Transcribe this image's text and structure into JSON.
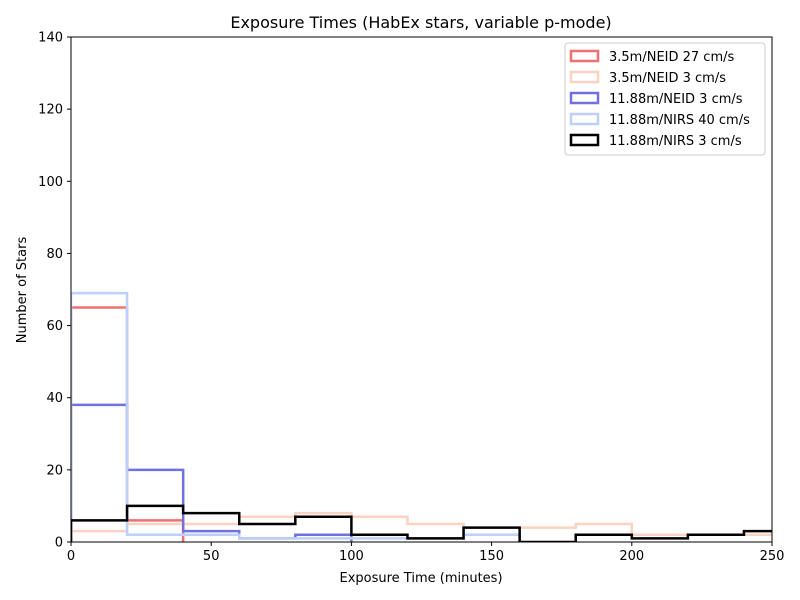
{
  "chart_data": {
    "type": "histogram",
    "title": "Exposure Times (HabEx stars, variable p-mode)",
    "xlabel": "Exposure Time (minutes)",
    "ylabel": "Number of Stars",
    "xlim": [
      0,
      250
    ],
    "ylim": [
      0,
      140
    ],
    "xticks": [
      0,
      50,
      100,
      150,
      200,
      250
    ],
    "yticks": [
      0,
      20,
      40,
      60,
      80,
      100,
      120,
      140
    ],
    "grid": false,
    "legend_position": "top-right",
    "bin_edges": [
      0,
      20,
      40,
      60,
      80,
      100,
      120,
      140,
      160,
      180,
      200,
      220,
      240,
      260
    ],
    "series": [
      {
        "name": "3.5m/NEID 27 cm/s",
        "color": "#f07070",
        "edges": [
          0,
          20,
          40
        ],
        "counts": [
          65,
          6
        ]
      },
      {
        "name": "3.5m/NEID 3 cm/s",
        "color": "#fcd2c0",
        "edges": [
          0,
          20,
          40,
          60,
          80,
          100,
          120,
          140,
          160,
          180,
          200,
          220,
          240,
          260
        ],
        "counts": [
          3,
          5,
          5,
          7,
          8,
          7,
          5,
          4,
          4,
          5,
          2,
          2,
          2
        ]
      },
      {
        "name": "11.88m/NEID 3 cm/s",
        "color": "#7070e0",
        "edges": [
          0,
          20,
          40,
          60,
          80,
          100
        ],
        "counts": [
          38,
          20,
          3,
          1,
          2
        ]
      },
      {
        "name": "11.88m/NIRS 40 cm/s",
        "color": "#bcd0fa",
        "edges": [
          0,
          20,
          40,
          60,
          80,
          100,
          120,
          140,
          160
        ],
        "counts": [
          69,
          2,
          2,
          1,
          1,
          1,
          1,
          2
        ]
      },
      {
        "name": "11.88m/NIRS 3 cm/s",
        "color": "#000000",
        "edges": [
          0,
          20,
          40,
          60,
          80,
          100,
          120,
          140,
          160,
          180,
          200,
          220,
          240,
          260
        ],
        "counts": [
          6,
          10,
          8,
          5,
          7,
          2,
          1,
          4,
          0,
          2,
          1,
          2,
          3
        ]
      }
    ]
  }
}
